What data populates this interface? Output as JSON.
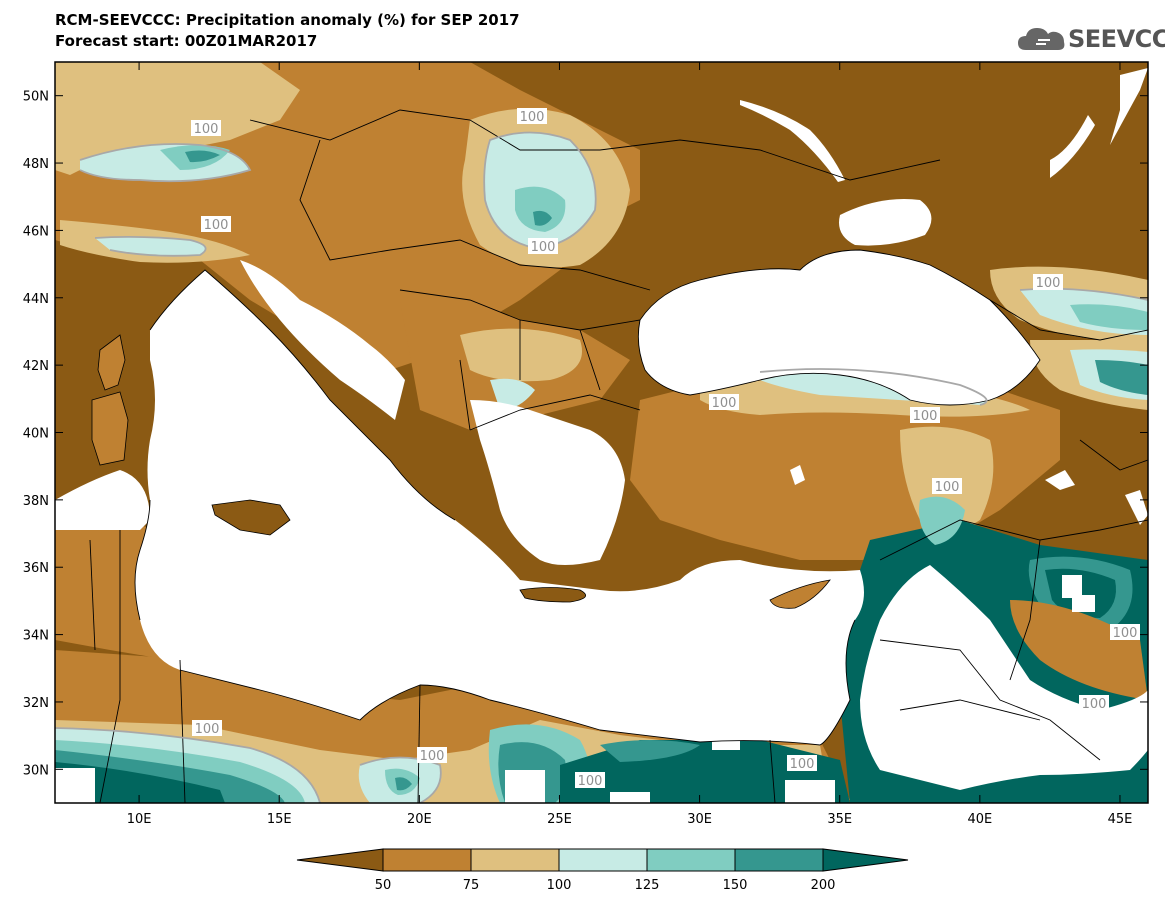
{
  "title": {
    "line1": "RCM-SEEVCCC: Precipitation anomaly (%) for SEP 2017",
    "line2": "Forecast start: 00Z01MAR2017"
  },
  "logo": {
    "text": "SEEVCCC",
    "icon": "cloud-icon",
    "color": "#555555"
  },
  "map": {
    "lon_range": [
      7,
      46
    ],
    "lat_range": [
      29,
      51
    ],
    "lat_ticks": [
      "30N",
      "32N",
      "34N",
      "36N",
      "38N",
      "40N",
      "42N",
      "44N",
      "46N",
      "48N",
      "50N"
    ],
    "lon_ticks": [
      "10E",
      "15E",
      "20E",
      "25E",
      "30E",
      "35E",
      "40E",
      "45E"
    ],
    "contour_labels": [
      "100",
      "100",
      "100",
      "100",
      "100",
      "100",
      "100",
      "100",
      "100",
      "100",
      "100",
      "100",
      "100",
      "100"
    ]
  },
  "colorbar": {
    "labels": [
      "50",
      "75",
      "100",
      "125",
      "150",
      "200"
    ],
    "colors": {
      "below_50": "#8b5a14",
      "50_75": "#bf8132",
      "75_100": "#dfc07f",
      "100_125": "#c7ebe5",
      "125_150": "#80cdc1",
      "150_200": "#35978f",
      "above_200": "#01665e"
    }
  }
}
